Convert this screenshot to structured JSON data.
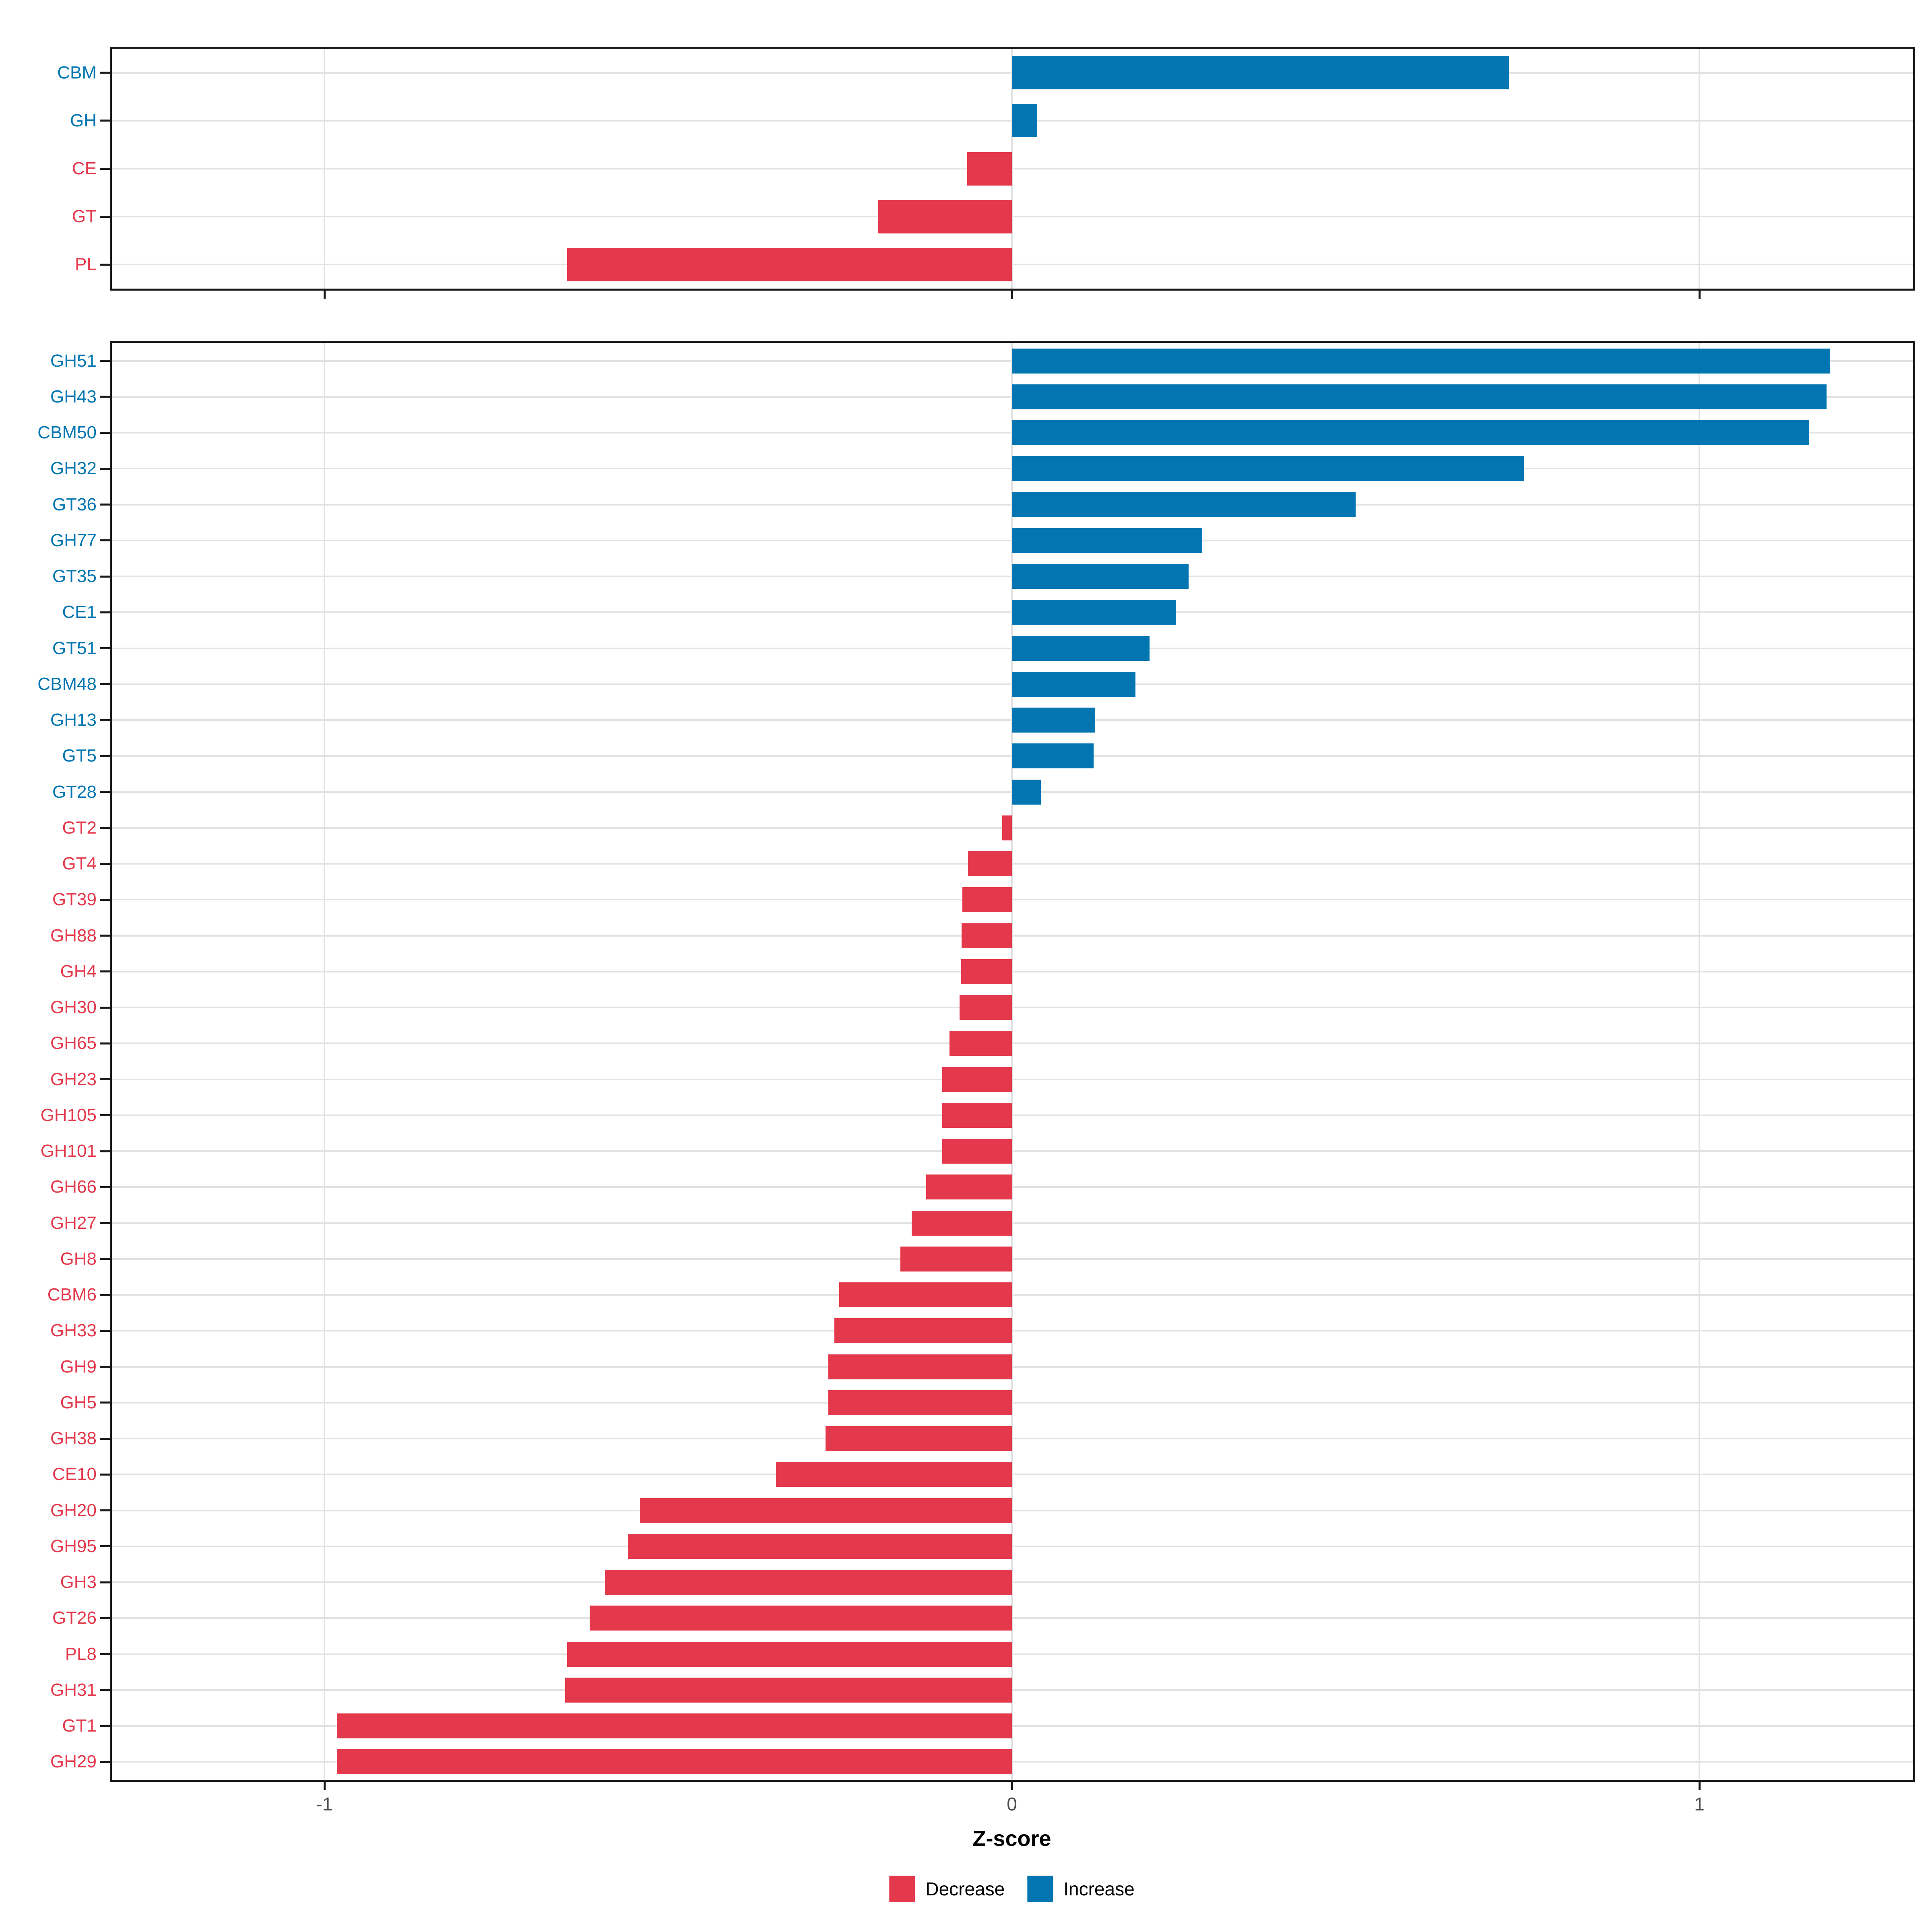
{
  "figure": {
    "axis": {
      "label": "Z-score",
      "ticks": [
        {
          "value": -1,
          "label": "-1"
        },
        {
          "value": 0,
          "label": "0"
        },
        {
          "value": 1,
          "label": "1"
        }
      ],
      "range": [
        -1.31,
        1.31
      ]
    },
    "legend": [
      {
        "key": "decrease",
        "label": "Decrease",
        "color": "#e4394c"
      },
      {
        "key": "increase",
        "label": "Increase",
        "color": "#0376b2"
      }
    ],
    "colors": {
      "decrease": "#e4394c",
      "increase": "#0376b2",
      "grid": "#e2e2e2",
      "panel_border": "#1a1a1a",
      "axis_text": "#4d4d4d",
      "background": "#ffffff"
    }
  },
  "chart_data": [
    {
      "type": "bar",
      "orientation": "horizontal",
      "title": "",
      "panel": "cazyme-classes",
      "xlabel": "Z-score",
      "xlim": [
        -1.31,
        1.31
      ],
      "grid": "on",
      "legend_position": "bottom",
      "categories": [
        "CBM",
        "GH",
        "CE",
        "GT",
        "PL"
      ],
      "values": [
        0.723,
        0.037,
        -0.065,
        -0.195,
        -0.647
      ]
    },
    {
      "type": "bar",
      "orientation": "horizontal",
      "title": "",
      "panel": "cazyme-families",
      "xlabel": "Z-score",
      "xlim": [
        -1.31,
        1.31
      ],
      "grid": "on",
      "legend_position": "bottom",
      "categories": [
        "GH51",
        "GH43",
        "CBM50",
        "GH32",
        "GT36",
        "GH77",
        "GT35",
        "CE1",
        "GT51",
        "CBM48",
        "GH13",
        "GT5",
        "GT28",
        "GT2",
        "GT4",
        "GT39",
        "GH88",
        "GH4",
        "GH30",
        "GH65",
        "GH23",
        "GH105",
        "GH101",
        "GH66",
        "GH27",
        "GH8",
        "CBM6",
        "GH33",
        "GH9",
        "GH5",
        "GH38",
        "CE10",
        "GH20",
        "GH95",
        "GH3",
        "GT26",
        "PL8",
        "GH31",
        "GT1",
        "GH29"
      ],
      "values": [
        1.19,
        1.185,
        1.16,
        0.745,
        0.5,
        0.277,
        0.257,
        0.238,
        0.2,
        0.18,
        0.121,
        0.119,
        0.042,
        -0.014,
        -0.064,
        -0.072,
        -0.073,
        -0.074,
        -0.076,
        -0.091,
        -0.101,
        -0.101,
        -0.101,
        -0.125,
        -0.146,
        -0.162,
        -0.251,
        -0.258,
        -0.267,
        -0.267,
        -0.271,
        -0.343,
        -0.541,
        -0.558,
        -0.592,
        -0.614,
        -0.647,
        -0.65,
        -0.982,
        -0.982
      ]
    }
  ]
}
